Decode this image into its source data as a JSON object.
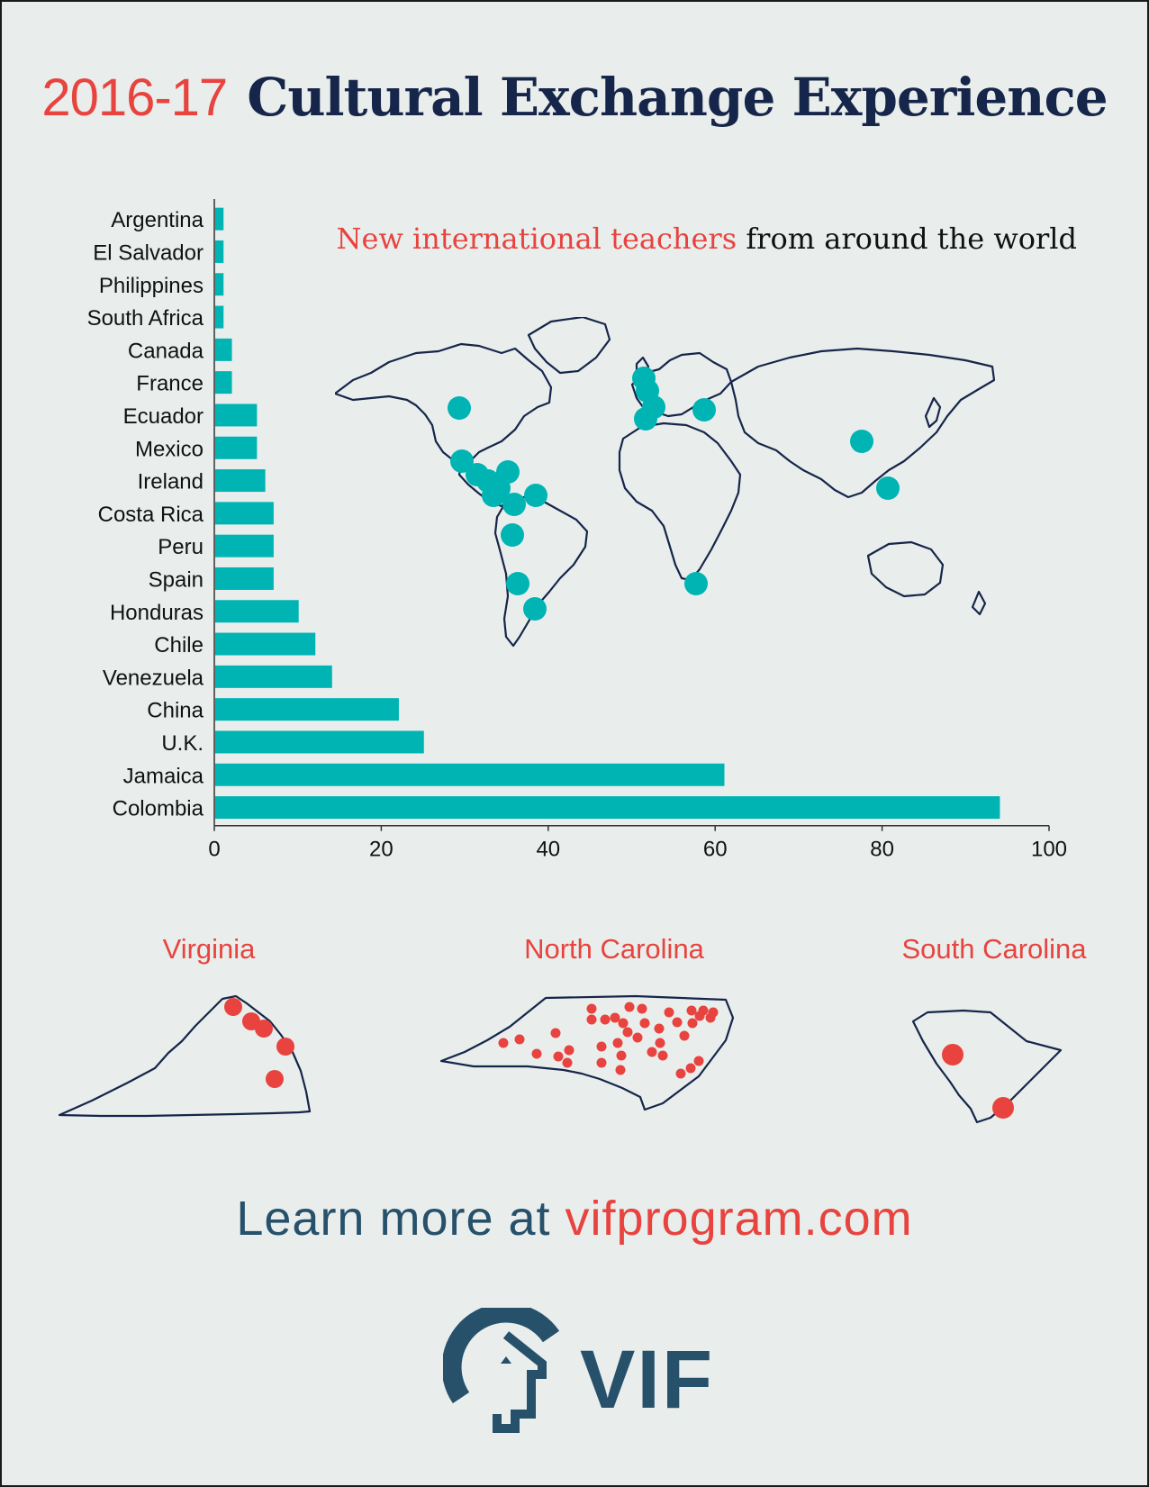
{
  "header": {
    "year": "2016-17",
    "title": "Cultural Exchange Experience"
  },
  "subtitle": {
    "highlight": "New international teachers",
    "rest": "from around the world"
  },
  "chart_data": {
    "type": "bar",
    "orientation": "horizontal",
    "categories": [
      "Argentina",
      "El Salvador",
      "Philippines",
      "South Africa",
      "Canada",
      "France",
      "Ecuador",
      "Mexico",
      "Ireland",
      "Costa Rica",
      "Peru",
      "Spain",
      "Honduras",
      "Chile",
      "Venezuela",
      "China",
      "U.K.",
      "Jamaica",
      "Colombia"
    ],
    "values": [
      1,
      1,
      1,
      1,
      2,
      2,
      5,
      5,
      6,
      7,
      7,
      7,
      10,
      12,
      14,
      22,
      25,
      61,
      94
    ],
    "xlim": [
      0,
      100
    ],
    "xticks": [
      "0",
      "20",
      "40",
      "60",
      "80",
      "100"
    ],
    "bar_color": "#00b4b4",
    "grid": false
  },
  "states": [
    {
      "name": "Virginia"
    },
    {
      "name": "North Carolina"
    },
    {
      "name": "South Carolina"
    }
  ],
  "colors": {
    "accent": "#e8433e",
    "navy": "#16254a",
    "teal": "#00b4b4",
    "slate": "#27506b"
  },
  "footer": {
    "prefix": "Learn more at",
    "url": "vifprogram.com"
  },
  "logo": {
    "text": "VIF"
  }
}
